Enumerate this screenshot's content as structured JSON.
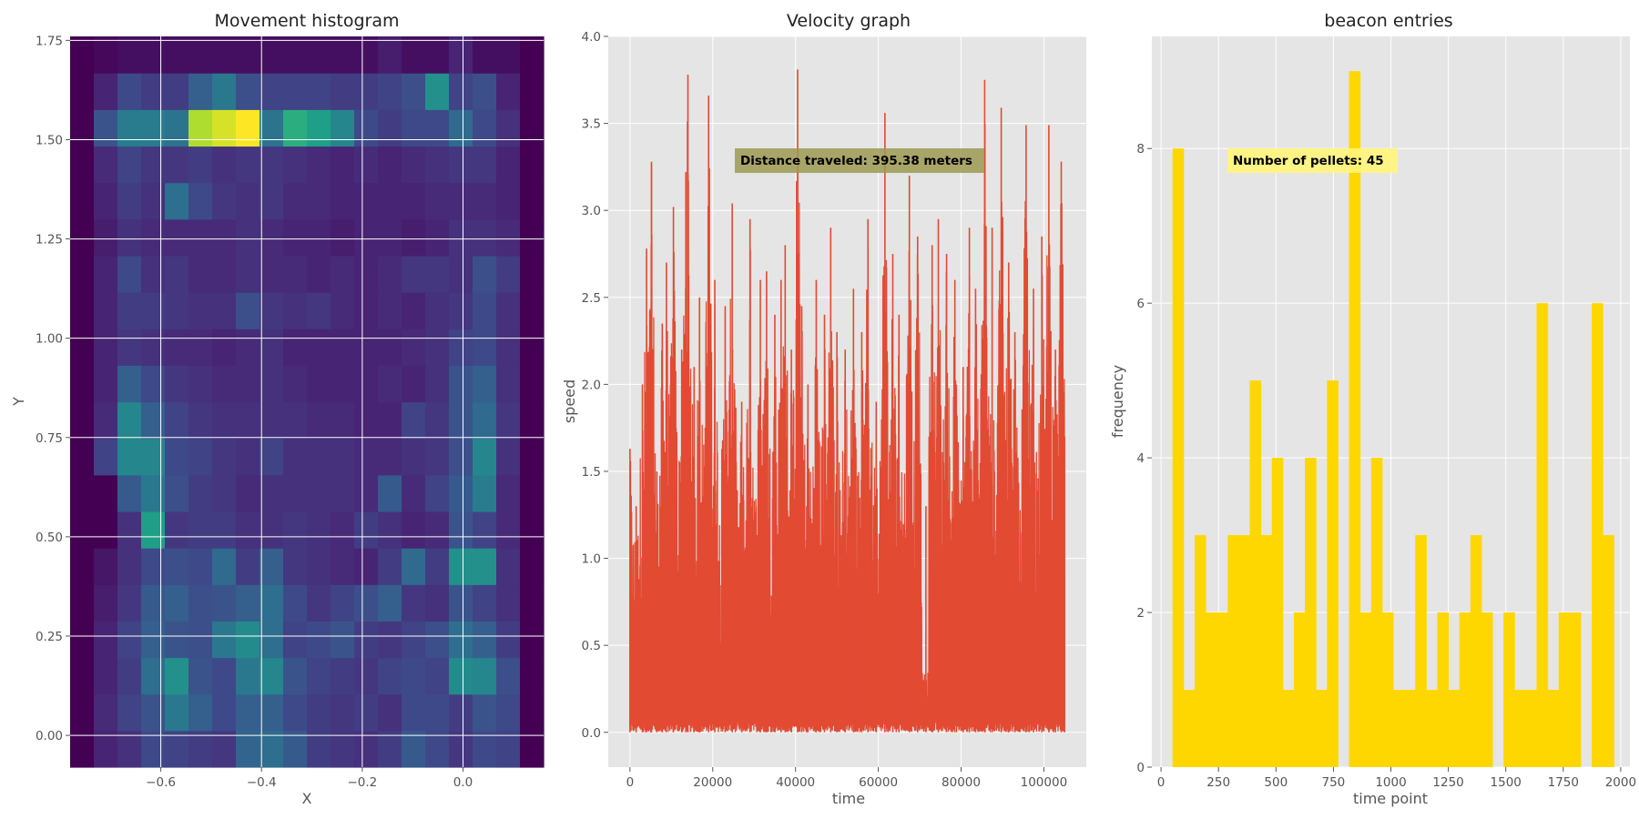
{
  "chart_data": [
    {
      "type": "heatmap",
      "title": "Movement histogram",
      "xlabel": "X",
      "ylabel": "Y",
      "xlim": [
        -0.78,
        0.16
      ],
      "ylim": [
        -0.08,
        1.76
      ],
      "x_ticks": [
        -0.6,
        -0.4,
        -0.2,
        0.0
      ],
      "x_tick_labels": [
        "−0.6",
        "−0.4",
        "−0.2",
        "0.0"
      ],
      "y_ticks": [
        0.0,
        0.25,
        0.5,
        0.75,
        1.0,
        1.25,
        1.5,
        1.75
      ],
      "y_tick_labels": [
        "0.00",
        "0.25",
        "0.50",
        "0.75",
        "1.00",
        "1.25",
        "1.50",
        "1.75"
      ],
      "grid": true,
      "colormap": "viridis",
      "x_edges": [
        -0.78,
        -0.733,
        -0.686,
        -0.639,
        -0.592,
        -0.545,
        -0.498,
        -0.451,
        -0.404,
        -0.357,
        -0.31,
        -0.263,
        -0.216,
        -0.169,
        -0.122,
        -0.075,
        -0.028,
        0.019,
        0.066,
        0.113,
        0.16
      ],
      "y_edges": [
        -0.08,
        0.012,
        0.104,
        0.196,
        0.288,
        0.38,
        0.472,
        0.564,
        0.656,
        0.748,
        0.84,
        0.932,
        1.024,
        1.116,
        1.208,
        1.3,
        1.392,
        1.484,
        1.576,
        1.668,
        1.76
      ],
      "z": [
        [
          0,
          0.1,
          0.14,
          0.22,
          0.2,
          0.18,
          0.16,
          0.32,
          0.36,
          0.28,
          0.18,
          0.16,
          0.14,
          0.18,
          0.28,
          0.22,
          0.16,
          0.22,
          0.2,
          0
        ],
        [
          0,
          0.12,
          0.2,
          0.26,
          0.4,
          0.3,
          0.22,
          0.3,
          0.3,
          0.22,
          0.18,
          0.16,
          0.18,
          0.14,
          0.22,
          0.22,
          0.18,
          0.26,
          0.22,
          0
        ],
        [
          0,
          0.1,
          0.18,
          0.36,
          0.5,
          0.26,
          0.22,
          0.4,
          0.46,
          0.26,
          0.2,
          0.18,
          0.16,
          0.2,
          0.22,
          0.2,
          0.48,
          0.46,
          0.24,
          0
        ],
        [
          0,
          0.1,
          0.2,
          0.3,
          0.26,
          0.24,
          0.4,
          0.48,
          0.36,
          0.2,
          0.22,
          0.26,
          0.18,
          0.16,
          0.2,
          0.24,
          0.36,
          0.3,
          0.18,
          0
        ],
        [
          0,
          0.08,
          0.16,
          0.28,
          0.3,
          0.24,
          0.26,
          0.3,
          0.36,
          0.22,
          0.16,
          0.2,
          0.24,
          0.3,
          0.16,
          0.14,
          0.26,
          0.2,
          0.14,
          0
        ],
        [
          0,
          0.06,
          0.14,
          0.22,
          0.24,
          0.22,
          0.34,
          0.18,
          0.3,
          0.16,
          0.14,
          0.12,
          0.1,
          0.18,
          0.34,
          0.18,
          0.5,
          0.5,
          0.14,
          0
        ],
        [
          0,
          0,
          0.14,
          0.56,
          0.16,
          0.18,
          0.18,
          0.14,
          0.14,
          0.16,
          0.14,
          0.12,
          0.18,
          0.14,
          0.1,
          0.12,
          0.26,
          0.2,
          0.12,
          0
        ],
        [
          0,
          0,
          0.28,
          0.4,
          0.24,
          0.18,
          0.16,
          0.12,
          0.14,
          0.14,
          0.14,
          0.14,
          0.12,
          0.28,
          0.12,
          0.2,
          0.28,
          0.42,
          0.12,
          0
        ],
        [
          0,
          0.2,
          0.46,
          0.46,
          0.22,
          0.2,
          0.16,
          0.14,
          0.2,
          0.14,
          0.14,
          0.14,
          0.12,
          0.12,
          0.14,
          0.16,
          0.24,
          0.46,
          0.14,
          0
        ],
        [
          0,
          0.12,
          0.46,
          0.3,
          0.2,
          0.16,
          0.14,
          0.14,
          0.14,
          0.14,
          0.12,
          0.12,
          0.1,
          0.1,
          0.2,
          0.16,
          0.26,
          0.34,
          0.16,
          0
        ],
        [
          0,
          0.1,
          0.3,
          0.22,
          0.16,
          0.14,
          0.12,
          0.12,
          0.14,
          0.12,
          0.1,
          0.1,
          0.1,
          0.12,
          0.1,
          0.14,
          0.26,
          0.3,
          0.14,
          0
        ],
        [
          0,
          0.1,
          0.16,
          0.14,
          0.12,
          0.12,
          0.1,
          0.12,
          0.14,
          0.1,
          0.1,
          0.1,
          0.1,
          0.1,
          0.12,
          0.14,
          0.2,
          0.22,
          0.14,
          0
        ],
        [
          0,
          0.1,
          0.18,
          0.18,
          0.16,
          0.14,
          0.14,
          0.24,
          0.16,
          0.14,
          0.16,
          0.12,
          0.1,
          0.12,
          0.1,
          0.14,
          0.16,
          0.22,
          0.14,
          0
        ],
        [
          0,
          0.1,
          0.22,
          0.14,
          0.16,
          0.12,
          0.12,
          0.14,
          0.12,
          0.12,
          0.1,
          0.12,
          0.1,
          0.12,
          0.16,
          0.16,
          0.14,
          0.24,
          0.18,
          0
        ],
        [
          0,
          0.08,
          0.14,
          0.12,
          0.12,
          0.12,
          0.12,
          0.14,
          0.12,
          0.1,
          0.1,
          0.08,
          0.1,
          0.1,
          0.08,
          0.1,
          0.14,
          0.14,
          0.12,
          0
        ],
        [
          0,
          0.1,
          0.18,
          0.14,
          0.36,
          0.22,
          0.16,
          0.14,
          0.16,
          0.12,
          0.12,
          0.1,
          0.1,
          0.1,
          0.1,
          0.12,
          0.12,
          0.12,
          0.1,
          0
        ],
        [
          0,
          0.12,
          0.2,
          0.16,
          0.16,
          0.18,
          0.14,
          0.16,
          0.16,
          0.14,
          0.12,
          0.1,
          0.12,
          0.1,
          0.12,
          0.14,
          0.16,
          0.16,
          0.1,
          0
        ],
        [
          0,
          0.26,
          0.42,
          0.42,
          0.38,
          0.88,
          0.94,
          1.0,
          0.38,
          0.62,
          0.56,
          0.46,
          0.22,
          0.18,
          0.22,
          0.22,
          0.34,
          0.22,
          0.14,
          0
        ],
        [
          0,
          0.1,
          0.22,
          0.18,
          0.18,
          0.3,
          0.4,
          0.24,
          0.2,
          0.2,
          0.2,
          0.18,
          0.18,
          0.2,
          0.24,
          0.5,
          0.2,
          0.24,
          0.1,
          0
        ],
        [
          0,
          0.02,
          0.04,
          0.04,
          0.04,
          0.04,
          0.04,
          0.04,
          0.04,
          0.04,
          0.04,
          0.04,
          0.04,
          0.08,
          0.04,
          0.04,
          0.1,
          0.04,
          0.04,
          0
        ]
      ]
    },
    {
      "type": "line",
      "title": "Velocity graph",
      "xlabel": "time",
      "ylabel": "speed",
      "xlim": [
        -5250,
        110250
      ],
      "ylim": [
        -0.2,
        4.0
      ],
      "x_ticks": [
        0,
        20000,
        40000,
        60000,
        80000,
        100000
      ],
      "x_tick_labels": [
        "0",
        "20000",
        "40000",
        "60000",
        "80000",
        "100000"
      ],
      "y_ticks": [
        0.0,
        0.5,
        1.0,
        1.5,
        2.0,
        2.5,
        3.0,
        3.5,
        4.0
      ],
      "y_tick_labels": [
        "0.0",
        "0.5",
        "1.0",
        "1.5",
        "2.0",
        "2.5",
        "3.0",
        "3.5",
        "4.0"
      ],
      "grid": true,
      "x_range": [
        0,
        105000
      ],
      "series": [
        {
          "name": "",
          "color": "#E24A33"
        }
      ],
      "peaks": [
        {
          "x": 0,
          "y": 1.63
        },
        {
          "x": 1500,
          "y": 1.3
        },
        {
          "x": 3000,
          "y": 2.0
        },
        {
          "x": 4000,
          "y": 2.78
        },
        {
          "x": 5200,
          "y": 3.28
        },
        {
          "x": 6500,
          "y": 1.5
        },
        {
          "x": 7800,
          "y": 2.35
        },
        {
          "x": 8800,
          "y": 2.7
        },
        {
          "x": 10500,
          "y": 3.02
        },
        {
          "x": 12500,
          "y": 2.2
        },
        {
          "x": 13500,
          "y": 3.22
        },
        {
          "x": 14000,
          "y": 3.78
        },
        {
          "x": 15500,
          "y": 2.1
        },
        {
          "x": 16800,
          "y": 2.5
        },
        {
          "x": 19000,
          "y": 3.66
        },
        {
          "x": 20500,
          "y": 2.6
        },
        {
          "x": 23000,
          "y": 2.45
        },
        {
          "x": 24700,
          "y": 3.04
        },
        {
          "x": 27000,
          "y": 1.9
        },
        {
          "x": 29000,
          "y": 2.95
        },
        {
          "x": 31500,
          "y": 2.6
        },
        {
          "x": 33000,
          "y": 2.65
        },
        {
          "x": 35000,
          "y": 2.4
        },
        {
          "x": 36500,
          "y": 2.6
        },
        {
          "x": 37500,
          "y": 2.8
        },
        {
          "x": 39000,
          "y": 2.2
        },
        {
          "x": 40500,
          "y": 3.81
        },
        {
          "x": 41500,
          "y": 2.45
        },
        {
          "x": 43000,
          "y": 2.0
        },
        {
          "x": 45000,
          "y": 2.6
        },
        {
          "x": 47000,
          "y": 2.4
        },
        {
          "x": 48500,
          "y": 2.9
        },
        {
          "x": 50000,
          "y": 2.3
        },
        {
          "x": 52000,
          "y": 2.2
        },
        {
          "x": 54000,
          "y": 2.55
        },
        {
          "x": 56000,
          "y": 2.3
        },
        {
          "x": 57500,
          "y": 2.95
        },
        {
          "x": 59500,
          "y": 1.9
        },
        {
          "x": 61600,
          "y": 3.56
        },
        {
          "x": 63500,
          "y": 2.75
        },
        {
          "x": 65000,
          "y": 2.4
        },
        {
          "x": 67500,
          "y": 3.2
        },
        {
          "x": 69500,
          "y": 2.85
        },
        {
          "x": 71500,
          "y": 1.3
        },
        {
          "x": 73000,
          "y": 2.8
        },
        {
          "x": 74500,
          "y": 2.95
        },
        {
          "x": 76500,
          "y": 2.75
        },
        {
          "x": 78500,
          "y": 2.6
        },
        {
          "x": 80500,
          "y": 2.1
        },
        {
          "x": 82000,
          "y": 2.9
        },
        {
          "x": 83500,
          "y": 2.55
        },
        {
          "x": 85700,
          "y": 3.75
        },
        {
          "x": 87500,
          "y": 2.9
        },
        {
          "x": 89700,
          "y": 3.59
        },
        {
          "x": 91500,
          "y": 2.7
        },
        {
          "x": 93000,
          "y": 2.3
        },
        {
          "x": 95700,
          "y": 3.49
        },
        {
          "x": 97500,
          "y": 2.55
        },
        {
          "x": 99500,
          "y": 2.85
        },
        {
          "x": 101200,
          "y": 3.49
        },
        {
          "x": 102800,
          "y": 2.2
        },
        {
          "x": 104200,
          "y": 3.28
        },
        {
          "x": 105000,
          "y": 1.7
        }
      ],
      "annotation": "Distance traveled: 395.38 meters"
    },
    {
      "type": "bar",
      "title": "beacon entries",
      "xlabel": "time point",
      "ylabel": "frequency",
      "xlim": [
        -40,
        2040
      ],
      "ylim": [
        0,
        9.45
      ],
      "x_ticks": [
        0,
        250,
        500,
        750,
        1000,
        1250,
        1500,
        1750,
        2000
      ],
      "x_tick_labels": [
        "0",
        "250",
        "500",
        "750",
        "1000",
        "1250",
        "1500",
        "1750",
        "2000"
      ],
      "y_ticks": [
        0,
        2,
        4,
        6,
        8
      ],
      "y_tick_labels": [
        "0",
        "2",
        "4",
        "6",
        "8"
      ],
      "grid": true,
      "color": "#FFD700",
      "bin_edges": [
        50,
        98,
        146,
        194,
        242,
        290,
        338,
        386,
        434,
        482,
        530,
        578,
        626,
        674,
        722,
        770,
        818,
        866,
        914,
        962,
        1010,
        1058,
        1106,
        1154,
        1202,
        1250,
        1298,
        1346,
        1394,
        1442,
        1490,
        1538,
        1586,
        1634,
        1682,
        1730,
        1778,
        1826,
        1874,
        1922,
        1970
      ],
      "values": [
        8,
        1,
        3,
        2,
        2,
        3,
        3,
        5,
        3,
        4,
        1,
        2,
        4,
        1,
        5,
        0,
        9,
        2,
        4,
        2,
        1,
        1,
        3,
        1,
        2,
        1,
        2,
        3,
        2,
        0,
        2,
        1,
        1,
        6,
        1,
        2,
        2,
        0,
        6,
        3
      ],
      "annotation": "Number of pellets: 45"
    }
  ]
}
